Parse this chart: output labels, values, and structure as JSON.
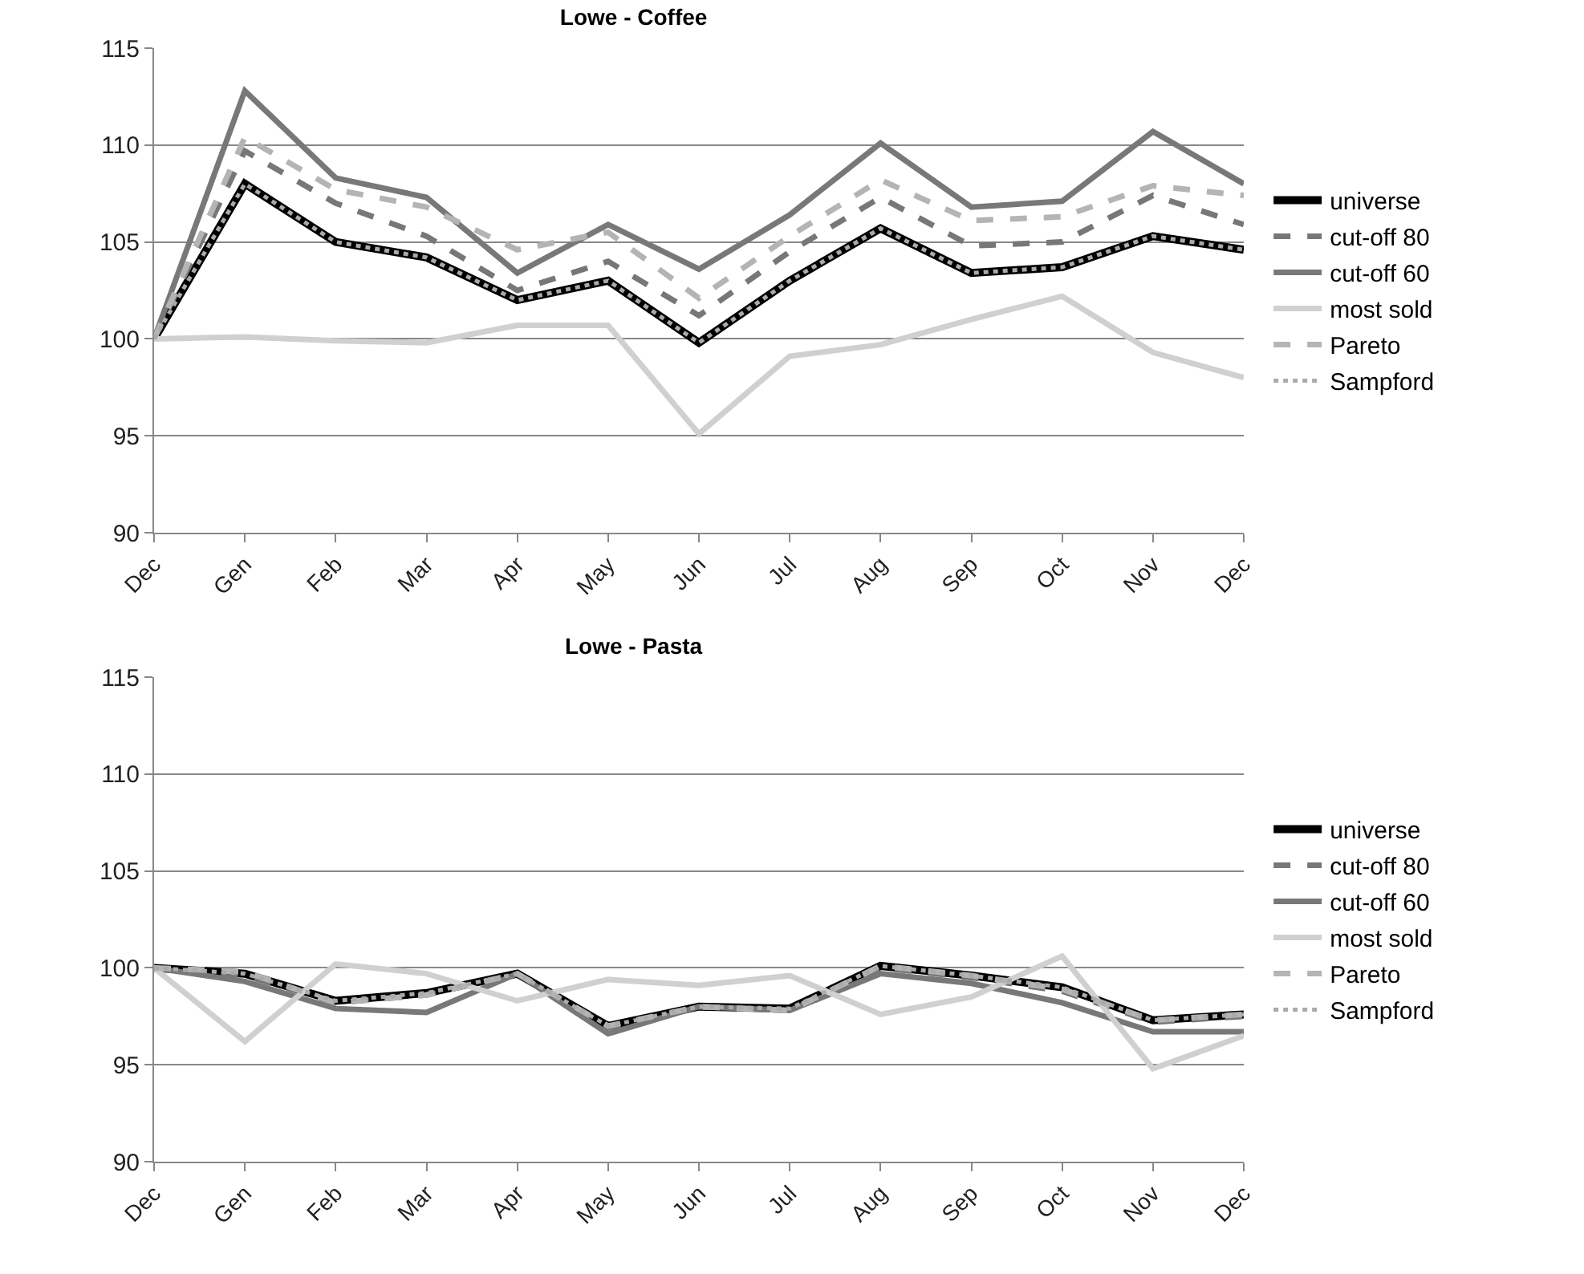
{
  "chart_data": [
    {
      "type": "line",
      "title": "Lowe - Coffee",
      "categories": [
        "Dec",
        "Gen",
        "Feb",
        "Mar",
        "Apr",
        "May",
        "Jun",
        "Jul",
        "Aug",
        "Sep",
        "Oct",
        "Nov",
        "Dec"
      ],
      "ylim": [
        90,
        115
      ],
      "yticks": [
        90,
        95,
        100,
        105,
        110,
        115
      ],
      "grid": "y",
      "legend": "right",
      "marker": "none",
      "series": [
        {
          "name": "universe",
          "color": "#000000",
          "line_style": "solid",
          "values": [
            100,
            108,
            105,
            104.2,
            102,
            103,
            99.8,
            103,
            105.7,
            103.4,
            103.7,
            105.3,
            104.6
          ]
        },
        {
          "name": "cut-off 80",
          "color": "#777777",
          "line_style": "dashed",
          "values": [
            100,
            109.7,
            107,
            105.3,
            102.5,
            104,
            101.2,
            104.5,
            107.3,
            104.8,
            105,
            107.4,
            105.9
          ]
        },
        {
          "name": "cut-off 60",
          "color": "#787878",
          "line_style": "solid",
          "values": [
            100,
            112.8,
            108.3,
            107.3,
            103.4,
            105.9,
            103.6,
            106.4,
            110.1,
            106.8,
            107.1,
            110.7,
            108
          ]
        },
        {
          "name": "most sold",
          "color": "#d0d0d0",
          "line_style": "solid",
          "values": [
            100,
            100.1,
            99.9,
            99.8,
            100.7,
            100.7,
            95.1,
            99.1,
            99.7,
            101,
            102.2,
            99.3,
            98
          ]
        },
        {
          "name": "Pareto",
          "color": "#b4b4b4",
          "line_style": "dashed",
          "values": [
            100,
            110.4,
            107.7,
            106.8,
            104.6,
            105.5,
            102.1,
            105.3,
            108.2,
            106.1,
            106.3,
            107.9,
            107.4
          ]
        },
        {
          "name": "Sampford",
          "color": "#aaaaaa",
          "line_style": "dotted",
          "values": [
            100,
            108,
            105,
            104.2,
            102,
            103,
            99.8,
            103,
            105.7,
            103.4,
            103.7,
            105.3,
            104.6
          ]
        }
      ]
    },
    {
      "type": "line",
      "title": "Lowe - Pasta",
      "categories": [
        "Dec",
        "Gen",
        "Feb",
        "Mar",
        "Apr",
        "May",
        "Jun",
        "Jul",
        "Aug",
        "Sep",
        "Oct",
        "Nov",
        "Dec"
      ],
      "ylim": [
        90,
        115
      ],
      "yticks": [
        90,
        95,
        100,
        105,
        110,
        115
      ],
      "grid": "y",
      "legend": "right",
      "marker": "none",
      "series": [
        {
          "name": "universe",
          "color": "#000000",
          "line_style": "solid",
          "values": [
            100,
            99.7,
            98.3,
            98.7,
            99.7,
            97,
            98,
            97.9,
            100.1,
            99.6,
            99,
            97.3,
            97.6
          ]
        },
        {
          "name": "cut-off 80",
          "color": "#777777",
          "line_style": "dashed",
          "values": [
            100,
            99.6,
            98.2,
            98.6,
            99.7,
            96.9,
            98,
            97.8,
            100,
            99.5,
            98.8,
            97.2,
            97.5
          ]
        },
        {
          "name": "cut-off 60",
          "color": "#787878",
          "line_style": "solid",
          "values": [
            100,
            99.3,
            97.9,
            97.7,
            99.7,
            96.6,
            98,
            97.8,
            99.7,
            99.2,
            98.2,
            96.7,
            96.7
          ]
        },
        {
          "name": "most sold",
          "color": "#d0d0d0",
          "line_style": "solid",
          "values": [
            100,
            96.2,
            100.2,
            99.7,
            98.3,
            99.4,
            99.1,
            99.6,
            97.6,
            98.5,
            100.6,
            94.8,
            96.5
          ]
        },
        {
          "name": "Pareto",
          "color": "#b4b4b4",
          "line_style": "dashed",
          "values": [
            100,
            99.8,
            98.2,
            98.6,
            99.7,
            97,
            98,
            97.8,
            100.1,
            99.6,
            98.9,
            97.3,
            97.6
          ]
        },
        {
          "name": "Sampford",
          "color": "#aaaaaa",
          "line_style": "dotted",
          "values": [
            100,
            99.7,
            98.3,
            98.7,
            99.7,
            97,
            98,
            97.9,
            100.1,
            99.6,
            99,
            97.3,
            97.6
          ]
        }
      ]
    }
  ]
}
